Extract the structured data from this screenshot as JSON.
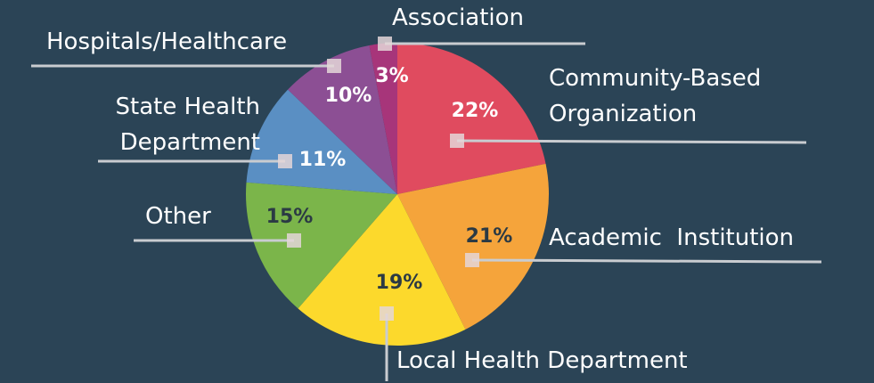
{
  "chart_data": {
    "type": "pie",
    "categories": [
      "Community-Based Organization",
      "Academic  Institution",
      "Local Health Department",
      "Other",
      "State Health Department",
      "Hospitals/Healthcare",
      "Association"
    ],
    "values": [
      22,
      21,
      19,
      15,
      11,
      10,
      3
    ],
    "value_labels": [
      "22%",
      "21%",
      "19%",
      "15%",
      "11%",
      "10%",
      "3%"
    ],
    "colors": [
      "#e04b5f",
      "#f5a43b",
      "#fcd92c",
      "#7bb54a",
      "#5a8fc3",
      "#8c4f94",
      "#a7357a"
    ],
    "value_label_colors": [
      "#ffffff",
      "#2b3a44",
      "#2b3a44",
      "#2b3a44",
      "#ffffff",
      "#ffffff",
      "#ffffff"
    ]
  }
}
